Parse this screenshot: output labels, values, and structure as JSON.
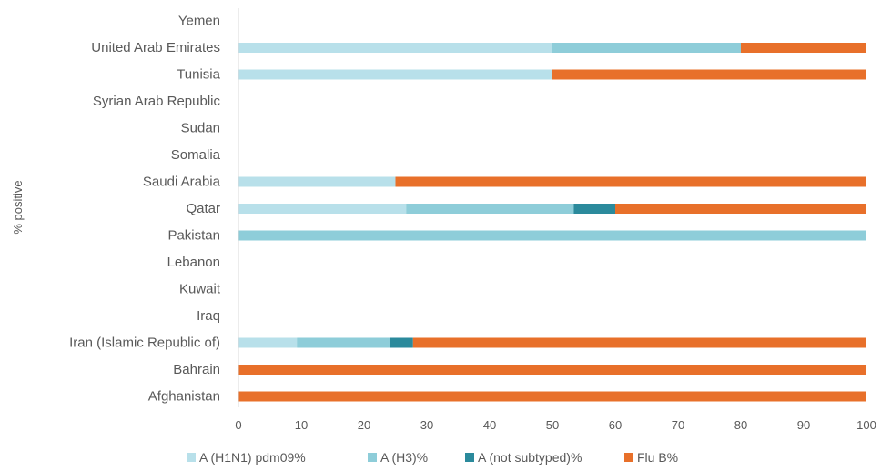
{
  "chart_data": {
    "type": "bar",
    "orientation": "horizontal",
    "stacked": true,
    "title": "",
    "xlabel": "",
    "ylabel": "% positive",
    "xlim": [
      0,
      100
    ],
    "x_ticks": [
      "0",
      "10",
      "20",
      "30",
      "40",
      "50",
      "60",
      "70",
      "80",
      "90",
      "100"
    ],
    "categories": [
      "Yemen",
      "United Arab Emirates",
      "Tunisia",
      "Syrian Arab Republic",
      "Sudan",
      "Somalia",
      "Saudi Arabia",
      "Qatar",
      "Pakistan",
      "Lebanon",
      "Kuwait",
      "Iraq",
      "Iran (Islamic Republic of)",
      "Bahrain",
      "Afghanistan"
    ],
    "series": [
      {
        "name": "A (H1N1) pdm09%",
        "color": "#b8e0ea",
        "values": [
          0,
          50,
          50,
          0,
          0,
          0,
          25,
          26.7,
          0,
          0,
          0,
          0,
          9.3,
          0,
          0
        ]
      },
      {
        "name": "A (H3)%",
        "color": "#8ecdd9",
        "values": [
          0,
          30,
          0,
          0,
          0,
          0,
          0,
          26.7,
          100,
          0,
          0,
          0,
          14.8,
          0,
          0
        ]
      },
      {
        "name": "A (not subtyped)%",
        "color": "#2b8a9c",
        "values": [
          0,
          0,
          0,
          0,
          0,
          0,
          0,
          6.6,
          0,
          0,
          0,
          0,
          3.7,
          0,
          0
        ]
      },
      {
        "name": "Flu B%",
        "color": "#e8702a",
        "values": [
          0,
          20,
          50,
          0,
          0,
          0,
          75,
          40,
          0,
          0,
          0,
          0,
          72.2,
          100,
          100
        ]
      }
    ],
    "grid": false,
    "legend_position": "bottom"
  }
}
